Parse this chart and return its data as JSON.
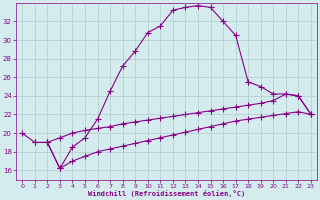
{
  "background_color": "#d4ecee",
  "grid_color": "#b0ccce",
  "line_color": "#880088",
  "marker": "+",
  "marker_size": 4,
  "xlim": [
    -0.5,
    23.5
  ],
  "ylim": [
    15,
    34
  ],
  "xticks": [
    0,
    1,
    2,
    3,
    4,
    5,
    6,
    7,
    8,
    9,
    10,
    11,
    12,
    13,
    14,
    15,
    16,
    17,
    18,
    19,
    20,
    21,
    22,
    23
  ],
  "yticks": [
    16,
    18,
    20,
    22,
    24,
    26,
    28,
    30,
    32
  ],
  "xlabel": "Windchill (Refroidissement éolien,°C)",
  "xlabel_color": "#880088",
  "tick_color": "#880088",
  "curve1_x": [
    0,
    1,
    2,
    3,
    4,
    5,
    6,
    7,
    8,
    9,
    10,
    11,
    12,
    13,
    14,
    15,
    16,
    17,
    18
  ],
  "curve1_y": [
    20,
    19,
    19,
    16.2,
    18.5,
    19.5,
    21.5,
    24.5,
    27.2,
    28.8,
    30.8,
    31.5,
    33.2,
    33.5,
    33.7,
    33.5,
    32.0,
    30.5,
    25.5
  ],
  "curve2_x": [
    18,
    19,
    20,
    21,
    22,
    23
  ],
  "curve2_y": [
    25.5,
    25.0,
    24.2,
    24.2,
    24.0,
    22.0
  ],
  "curve3_x": [
    1,
    2,
    3,
    4,
    5,
    6,
    7,
    8,
    9,
    10,
    11,
    12,
    13,
    14,
    15,
    16,
    17,
    18,
    19,
    20,
    21,
    22,
    23
  ],
  "curve3_y": [
    19,
    19,
    19.5,
    20.0,
    20.3,
    20.5,
    20.7,
    21.0,
    21.2,
    21.4,
    21.6,
    21.8,
    22.0,
    22.2,
    22.4,
    22.6,
    22.8,
    23.0,
    23.2,
    23.5,
    24.2,
    24.0,
    22.0
  ],
  "curve4_x": [
    2,
    3,
    4,
    5,
    6,
    7,
    8,
    9,
    10,
    11,
    12,
    13,
    14,
    15,
    16,
    17,
    18,
    19,
    20,
    21,
    22,
    23
  ],
  "curve4_y": [
    19,
    16.2,
    17.0,
    17.5,
    18.0,
    18.3,
    18.6,
    18.9,
    19.2,
    19.5,
    19.8,
    20.1,
    20.4,
    20.7,
    21.0,
    21.3,
    21.5,
    21.7,
    21.9,
    22.1,
    22.3,
    22.0
  ]
}
